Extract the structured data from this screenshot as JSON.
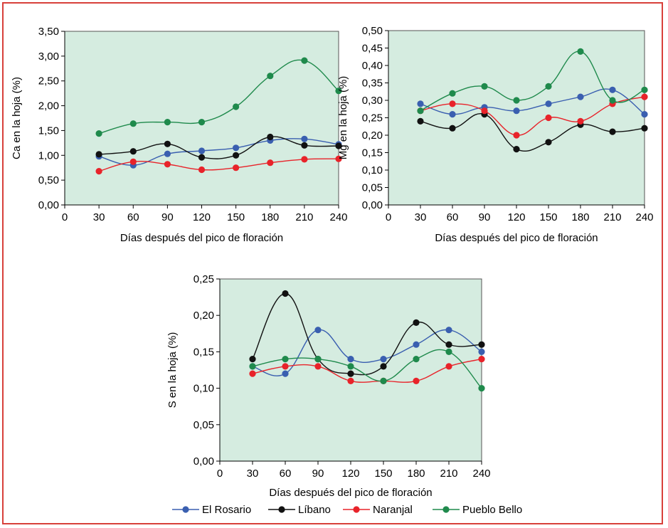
{
  "chart_data": [
    {
      "type": "line",
      "xlabel": "Días después del pico de floración",
      "ylabel": "Ca en la hoja (%)",
      "x_ticks": [
        "0",
        "30",
        "60",
        "90",
        "120",
        "150",
        "180",
        "210",
        "240"
      ],
      "y_ticks": [
        "0,00",
        "0,50",
        "1,00",
        "1,50",
        "2,00",
        "2,50",
        "3,00",
        "3,50"
      ],
      "xlim": [
        0,
        240
      ],
      "ylim": [
        0,
        3.5
      ],
      "x": [
        30,
        60,
        90,
        120,
        150,
        180,
        210,
        240
      ],
      "series": [
        {
          "name": "El Rosario",
          "color": "#3a5fb0",
          "values": [
            0.98,
            0.8,
            1.03,
            1.09,
            1.15,
            1.3,
            1.33,
            1.22
          ]
        },
        {
          "name": "Líbano",
          "color": "#111111",
          "values": [
            1.02,
            1.08,
            1.23,
            0.96,
            1.0,
            1.37,
            1.2,
            1.19
          ]
        },
        {
          "name": "Naranjal",
          "color": "#e8232a",
          "values": [
            0.68,
            0.87,
            0.82,
            0.71,
            0.75,
            0.85,
            0.92,
            0.93
          ]
        },
        {
          "name": "Pueblo Bello",
          "color": "#1f8a4c",
          "values": [
            1.44,
            1.64,
            1.67,
            1.67,
            1.98,
            2.6,
            2.91,
            2.3
          ]
        }
      ]
    },
    {
      "type": "line",
      "xlabel": "Días después del pico de floración",
      "ylabel": "Mg en la hoja (%)",
      "x_ticks": [
        "0",
        "30",
        "60",
        "90",
        "120",
        "150",
        "180",
        "210",
        "240"
      ],
      "y_ticks": [
        "0,00",
        "0,05",
        "0,10",
        "0,15",
        "0,20",
        "0,25",
        "0,30",
        "0,35",
        "0,40",
        "0,45",
        "0,50"
      ],
      "xlim": [
        0,
        240
      ],
      "ylim": [
        0,
        0.5
      ],
      "x": [
        30,
        60,
        90,
        120,
        150,
        180,
        210,
        240
      ],
      "series": [
        {
          "name": "El Rosario",
          "color": "#3a5fb0",
          "values": [
            0.29,
            0.26,
            0.28,
            0.27,
            0.29,
            0.31,
            0.33,
            0.26
          ]
        },
        {
          "name": "Líbano",
          "color": "#111111",
          "values": [
            0.24,
            0.22,
            0.26,
            0.16,
            0.18,
            0.23,
            0.21,
            0.22
          ]
        },
        {
          "name": "Naranjal",
          "color": "#e8232a",
          "values": [
            0.27,
            0.29,
            0.27,
            0.2,
            0.25,
            0.24,
            0.29,
            0.31
          ]
        },
        {
          "name": "Pueblo Bello",
          "color": "#1f8a4c",
          "values": [
            0.27,
            0.32,
            0.34,
            0.3,
            0.34,
            0.44,
            0.3,
            0.33
          ]
        }
      ]
    },
    {
      "type": "line",
      "xlabel": "Días después del pico de floración",
      "ylabel": "S en la hoja (%)",
      "x_ticks": [
        "0",
        "30",
        "60",
        "90",
        "120",
        "150",
        "180",
        "210",
        "240"
      ],
      "y_ticks": [
        "0,00",
        "0,05",
        "0,10",
        "0,15",
        "0,20",
        "0,25"
      ],
      "xlim": [
        0,
        240
      ],
      "ylim": [
        0,
        0.25
      ],
      "x": [
        30,
        60,
        90,
        120,
        150,
        180,
        210,
        240
      ],
      "series": [
        {
          "name": "El Rosario",
          "color": "#3a5fb0",
          "values": [
            0.13,
            0.12,
            0.18,
            0.14,
            0.14,
            0.16,
            0.18,
            0.15
          ]
        },
        {
          "name": "Líbano",
          "color": "#111111",
          "values": [
            0.14,
            0.23,
            0.14,
            0.12,
            0.13,
            0.19,
            0.16,
            0.16
          ]
        },
        {
          "name": "Naranjal",
          "color": "#e8232a",
          "values": [
            0.12,
            0.13,
            0.13,
            0.11,
            0.11,
            0.11,
            0.13,
            0.14
          ]
        },
        {
          "name": "Pueblo Bello",
          "color": "#1f8a4c",
          "values": [
            0.13,
            0.14,
            0.14,
            0.13,
            0.11,
            0.14,
            0.15,
            0.1
          ]
        }
      ]
    }
  ],
  "legend": [
    {
      "label": "El Rosario",
      "color": "#3a5fb0"
    },
    {
      "label": "Líbano",
      "color": "#111111"
    },
    {
      "label": "Naranjal",
      "color": "#e8232a"
    },
    {
      "label": "Pueblo Bello",
      "color": "#1f8a4c"
    }
  ],
  "plot_background": "#d5ece0",
  "frame_color": "#d8403a"
}
